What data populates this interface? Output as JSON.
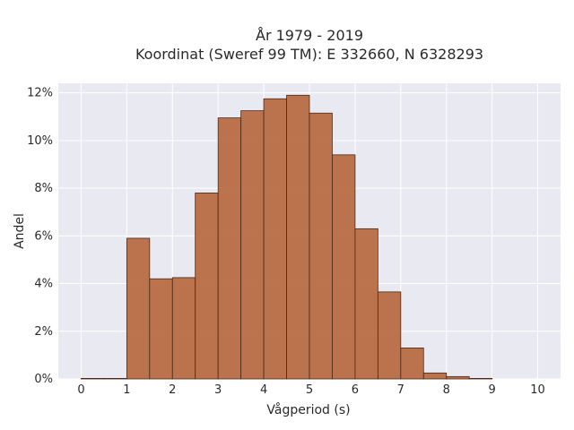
{
  "chart_data": {
    "type": "bar",
    "title_line1": "År 1979 - 2019",
    "title_line2": "Koordinat (Sweref 99 TM): E 332660, N 6328293",
    "xlabel": "Vågperiod (s)",
    "ylabel": "Andel",
    "bin_width": 0.5,
    "bins": [
      {
        "x0": 0.0,
        "value": 0.0
      },
      {
        "x0": 0.5,
        "value": 0.0
      },
      {
        "x0": 1.0,
        "value": 5.9
      },
      {
        "x0": 1.5,
        "value": 4.2
      },
      {
        "x0": 2.0,
        "value": 4.25
      },
      {
        "x0": 2.5,
        "value": 7.8
      },
      {
        "x0": 3.0,
        "value": 10.95
      },
      {
        "x0": 3.5,
        "value": 11.25
      },
      {
        "x0": 4.0,
        "value": 11.75
      },
      {
        "x0": 4.5,
        "value": 11.9
      },
      {
        "x0": 5.0,
        "value": 11.15
      },
      {
        "x0": 5.5,
        "value": 9.4
      },
      {
        "x0": 6.0,
        "value": 6.3
      },
      {
        "x0": 6.5,
        "value": 3.65
      },
      {
        "x0": 7.0,
        "value": 1.3
      },
      {
        "x0": 7.5,
        "value": 0.25
      },
      {
        "x0": 8.0,
        "value": 0.1
      },
      {
        "x0": 8.5,
        "value": 0.02
      }
    ],
    "x_ticks": [
      0,
      1,
      2,
      3,
      4,
      5,
      6,
      7,
      8,
      9,
      10
    ],
    "x_tick_labels": [
      "0",
      "1",
      "2",
      "3",
      "4",
      "5",
      "6",
      "7",
      "8",
      "9",
      "10"
    ],
    "y_ticks": [
      0,
      2,
      4,
      6,
      8,
      10,
      12
    ],
    "y_tick_labels": [
      "0%",
      "2%",
      "4%",
      "6%",
      "8%",
      "10%",
      "12%"
    ],
    "xlim": [
      -0.5,
      10.5
    ],
    "ylim": [
      0,
      12.4
    ],
    "grid": true,
    "bar_color": "#b5683f",
    "bar_edge_color": "#4a2a18",
    "plot_background": "#e9e9f2",
    "grid_color": "#ffffff"
  }
}
